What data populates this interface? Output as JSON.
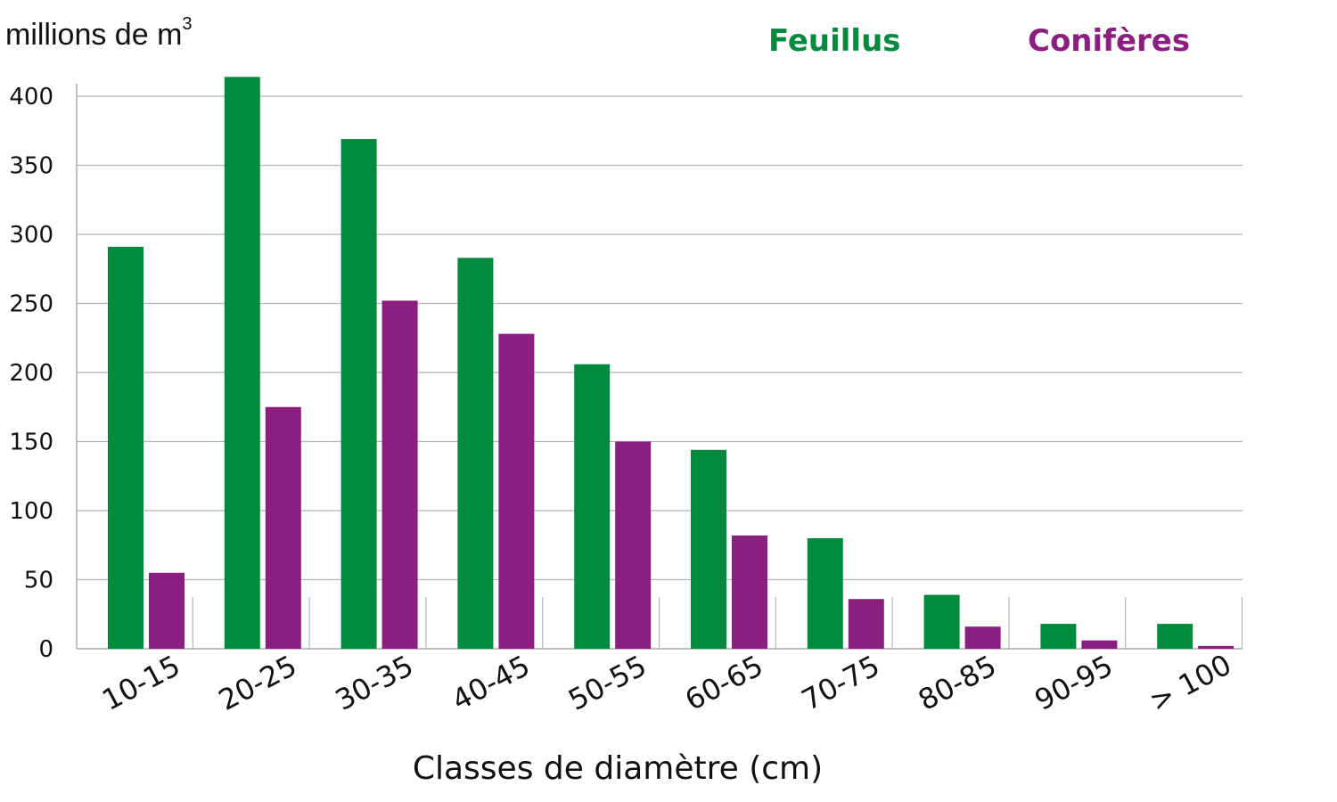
{
  "chart_data": {
    "type": "bar",
    "title": "",
    "ylabel": "millions de m",
    "ylabel_superscript": "3",
    "xlabel": "Classes de diamètre (cm)",
    "categories": [
      "10-15",
      "20-25",
      "30-35",
      "40-45",
      "50-55",
      "60-65",
      "70-75",
      "80-85",
      "90-95",
      "> 100"
    ],
    "series": [
      {
        "name": "Feuillus",
        "color": "#008a3e",
        "values": [
          291,
          414,
          369,
          283,
          206,
          144,
          80,
          39,
          18,
          18
        ]
      },
      {
        "name": "Conifères",
        "color": "#8a1f80",
        "values": [
          55,
          175,
          252,
          228,
          150,
          82,
          36,
          16,
          6,
          2
        ]
      }
    ],
    "ylim": [
      0,
      400
    ],
    "yticks": [
      0,
      50,
      100,
      150,
      200,
      250,
      300,
      350,
      400
    ],
    "grid": true,
    "legend_position": "top-right"
  }
}
